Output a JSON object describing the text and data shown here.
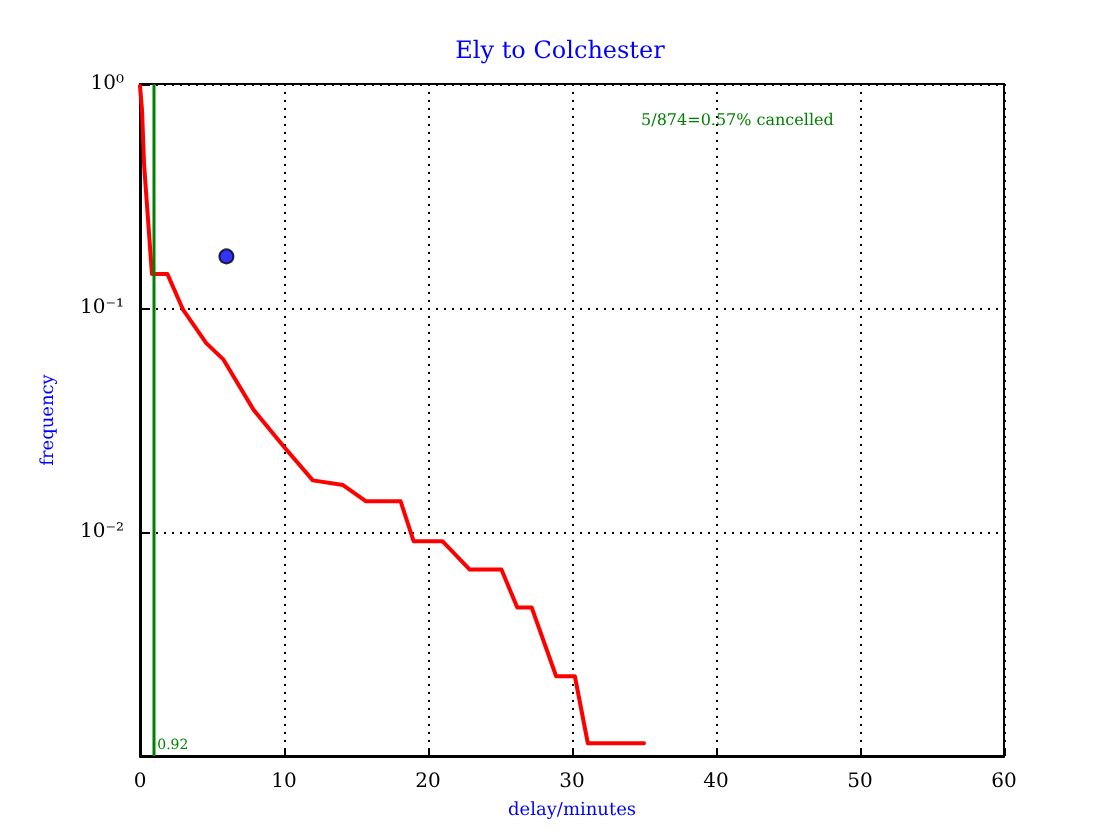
{
  "chart_data": {
    "type": "line",
    "title": "Ely to Colchester",
    "xlabel": "delay/minutes",
    "ylabel": "frequency",
    "annotations": [
      "5/874=0.57% cancelled"
    ],
    "series": [
      {
        "color": "#ff0000",
        "marker": "none",
        "x": [
          0,
          0.14,
          0.28,
          0.56,
          0.83,
          1.9,
          3.0,
          4.6,
          5.8,
          7.9,
          9.95,
          12.0,
          14.1,
          15.7,
          18.1,
          19.0,
          21.0,
          22.9,
          25.1,
          26.2,
          27.2,
          28.9,
          30.2,
          31.1,
          35
        ],
        "values": [
          0.98,
          0.765,
          0.44,
          0.247,
          0.142,
          0.142,
          0.098,
          0.0697,
          0.0588,
          0.035,
          0.0242,
          0.017,
          0.0162,
          0.0137,
          0.0137,
          0.0091,
          0.0091,
          0.0068,
          0.0068,
          0.0046,
          0.0046,
          0.00227,
          0.00227,
          0.00114,
          0.00114
        ]
      },
      {
        "type": "scatter",
        "color": "#0000ff",
        "marker": "circle",
        "x": [
          6
        ],
        "values": [
          0.17
        ]
      }
    ],
    "ref_lines": [
      {
        "axis": "x",
        "value": 0.92,
        "label": "0.92",
        "color": "#008000"
      }
    ],
    "xlim": [
      0,
      60
    ],
    "xticks": [
      0,
      10,
      20,
      30,
      40,
      50,
      60
    ],
    "ylim": [
      0.001,
      1
    ],
    "yticks": [
      {
        "value": 1,
        "label": "10⁰"
      },
      {
        "value": 0.1,
        "label": "10⁻¹"
      },
      {
        "value": 0.01,
        "label": "10⁻²"
      }
    ],
    "log": "y",
    "grid": true
  }
}
